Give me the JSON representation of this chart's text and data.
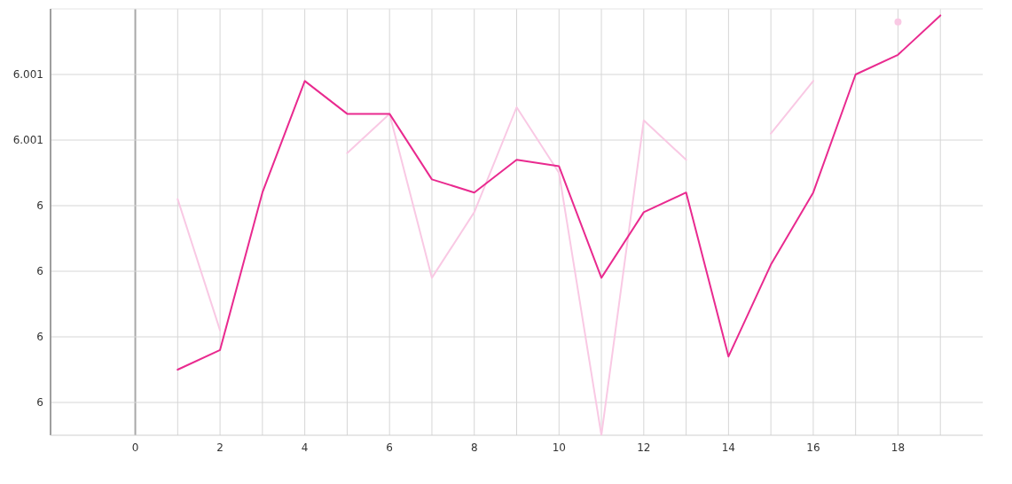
{
  "chart_data": {
    "type": "line",
    "x": [
      1,
      2,
      3,
      4,
      5,
      6,
      7,
      8,
      9,
      10,
      11,
      12,
      13,
      14,
      15,
      16,
      17,
      18,
      19
    ],
    "series": [
      {
        "color": "#f9c9e4",
        "values": [
          6.00041,
          6.00021,
          null,
          null,
          6.00048,
          6.00054,
          6.00029,
          6.00039,
          6.00055,
          6.00045,
          6.00005,
          6.00053,
          6.00047,
          null,
          6.00051,
          6.00059,
          null,
          6.00068,
          null
        ]
      },
      {
        "color": "#e92a8f",
        "values": [
          6.00015,
          6.00018,
          6.00042,
          6.00059,
          6.00054,
          6.00054,
          6.00044,
          6.00042,
          6.00047,
          6.00046,
          6.00029,
          6.00039,
          6.00042,
          6.00017,
          6.00031,
          6.00042,
          6.0006,
          6.00063,
          6.00069
        ]
      }
    ],
    "xlim": [
      -2,
      20
    ],
    "xticks": [
      0,
      {
        "value": 1,
        "label": null
      },
      2,
      {
        "value": 3,
        "label": null
      },
      4,
      {
        "value": 5,
        "label": null
      },
      6,
      {
        "value": 7,
        "label": null
      },
      8,
      {
        "value": 9,
        "label": null
      },
      10,
      {
        "value": 11,
        "label": null
      },
      12,
      {
        "value": 13,
        "label": null
      },
      14,
      {
        "value": 15,
        "label": null
      },
      16,
      {
        "value": 17,
        "label": null
      },
      18,
      {
        "value": 19,
        "label": null
      }
    ],
    "ylim": [
      6.00005,
      6.0007
    ],
    "yticks": [
      {
        "value": 6.0001,
        "label": "6"
      },
      {
        "value": 6.0002,
        "label": "6"
      },
      {
        "value": 6.0003,
        "label": "6"
      },
      {
        "value": 6.0004,
        "label": "6"
      },
      {
        "value": 6.0005,
        "label": "6.001"
      },
      {
        "value": 6.0006,
        "label": "6.001"
      }
    ],
    "grid": true,
    "marker": "none",
    "line_style": "solid"
  }
}
